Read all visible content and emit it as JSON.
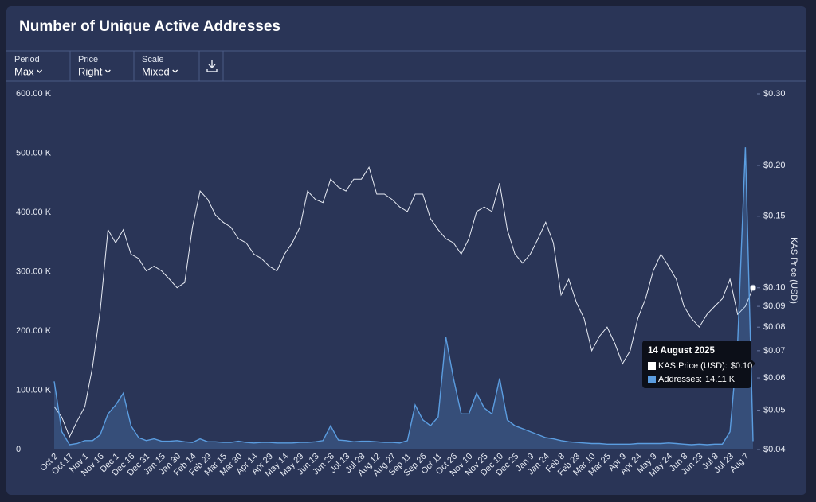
{
  "chart_data": {
    "type": "line",
    "title": "Number of Unique Active Addresses",
    "y2label": "KAS Price (USD)",
    "categories": [
      "Oct 2",
      null,
      "Oct 17",
      null,
      "Nov 1",
      null,
      "Nov 16",
      null,
      "Dec 1",
      null,
      "Dec 16",
      null,
      "Dec 31",
      null,
      "Jan 15",
      null,
      "Jan 30",
      null,
      "Feb 14",
      null,
      "Feb 29",
      null,
      "Mar 15",
      null,
      "Mar 30",
      null,
      "Apr 14",
      null,
      "Apr 29",
      null,
      "May 14",
      null,
      "May 29",
      null,
      "Jun 13",
      null,
      "Jun 28",
      null,
      "Jul 13",
      null,
      "Jul 28",
      null,
      "Aug 12",
      null,
      "Aug 27",
      null,
      "Sep 11",
      null,
      "Sep 26",
      null,
      "Oct 11",
      null,
      "Oct 26",
      null,
      "Nov 10",
      null,
      "Nov 25",
      null,
      "Dec 10",
      null,
      "Dec 25",
      null,
      "Jan 9",
      null,
      "Jan 24",
      null,
      "Feb 8",
      null,
      "Feb 23",
      null,
      "Mar 10",
      null,
      "Mar 25",
      null,
      "Apr 9",
      null,
      "Apr 24",
      null,
      "May 9",
      null,
      "May 24",
      null,
      "Jun 8",
      null,
      "Jun 23",
      null,
      "Jul 8",
      null,
      "Jul 23",
      null,
      "Aug 7",
      null
    ],
    "series": [
      {
        "name": "KAS Price (USD)",
        "type": "line",
        "axis": "y2",
        "color": "#e8ecf4",
        "values": [
          0.051,
          0.048,
          0.043,
          0.047,
          0.051,
          0.064,
          0.088,
          0.139,
          0.129,
          0.139,
          0.121,
          0.118,
          0.11,
          0.113,
          0.11,
          0.105,
          0.1,
          0.103,
          0.141,
          0.173,
          0.165,
          0.151,
          0.145,
          0.141,
          0.132,
          0.129,
          0.121,
          0.118,
          0.113,
          0.11,
          0.121,
          0.129,
          0.141,
          0.173,
          0.165,
          0.162,
          0.185,
          0.177,
          0.173,
          0.185,
          0.185,
          0.198,
          0.17,
          0.17,
          0.165,
          0.158,
          0.154,
          0.17,
          0.17,
          0.148,
          0.139,
          0.132,
          0.129,
          0.121,
          0.132,
          0.154,
          0.158,
          0.154,
          0.181,
          0.139,
          0.121,
          0.115,
          0.121,
          0.132,
          0.145,
          0.129,
          0.096,
          0.105,
          0.092,
          0.084,
          0.07,
          0.076,
          0.08,
          0.073,
          0.065,
          0.07,
          0.084,
          0.094,
          0.11,
          0.121,
          0.113,
          0.105,
          0.09,
          0.084,
          0.08,
          0.086,
          0.09,
          0.094,
          0.105,
          0.086,
          0.09,
          0.1
        ]
      },
      {
        "name": "Addresses",
        "type": "area",
        "color": "#5b9de0",
        "values": [
          115000,
          30000,
          8000,
          10000,
          15000,
          15000,
          25000,
          60000,
          75000,
          95000,
          40000,
          20000,
          15000,
          18000,
          14000,
          14000,
          15000,
          13000,
          12000,
          18000,
          13000,
          13000,
          12000,
          12000,
          14000,
          12000,
          11000,
          12000,
          12000,
          11000,
          11000,
          11000,
          12000,
          12000,
          13000,
          15000,
          40000,
          16000,
          15000,
          13000,
          14000,
          14000,
          13000,
          12000,
          12000,
          11000,
          15000,
          75000,
          50000,
          40000,
          55000,
          190000,
          120000,
          60000,
          60000,
          95000,
          70000,
          60000,
          120000,
          50000,
          40000,
          35000,
          30000,
          25000,
          20000,
          18000,
          15000,
          13000,
          12000,
          11000,
          10000,
          10000,
          9000,
          9000,
          9000,
          9000,
          10000,
          10000,
          10000,
          10000,
          11000,
          10000,
          9000,
          8000,
          9000,
          8000,
          9000,
          9000,
          30000,
          180000,
          510000,
          14110
        ]
      }
    ],
    "ylim": [
      0,
      600000
    ],
    "yticks": [
      {
        "value": 0,
        "label": "0"
      },
      {
        "value": 100000,
        "label": "100.00 K"
      },
      {
        "value": 200000,
        "label": "200.00 K"
      },
      {
        "value": 300000,
        "label": "300.00 K"
      },
      {
        "value": 400000,
        "label": "400.00 K"
      },
      {
        "value": 500000,
        "label": "500.00 K"
      },
      {
        "value": 600000,
        "label": "600.00 K"
      }
    ],
    "y2lim": [
      0.04,
      0.3
    ],
    "y2log": true,
    "y2ticks": [
      {
        "value": 0.04,
        "label": "$0.04"
      },
      {
        "value": 0.05,
        "label": "$0.05"
      },
      {
        "value": 0.06,
        "label": "$0.06"
      },
      {
        "value": 0.07,
        "label": "$0.07"
      },
      {
        "value": 0.08,
        "label": "$0.08"
      },
      {
        "value": 0.09,
        "label": "$0.09"
      },
      {
        "value": 0.1,
        "label": "$0.10"
      },
      {
        "value": 0.15,
        "label": "$0.15"
      },
      {
        "value": 0.2,
        "label": "$0.20"
      },
      {
        "value": 0.3,
        "label": "$0.30"
      }
    ],
    "grid": false,
    "tooltip": {
      "title": "14 August 2025",
      "values": [
        "$0.10",
        "14.11 K"
      ]
    }
  },
  "controls": [
    {
      "label": "Period",
      "value": "Max"
    },
    {
      "label": "Price",
      "value": "Right"
    },
    {
      "label": "Scale",
      "value": "Mixed"
    }
  ]
}
